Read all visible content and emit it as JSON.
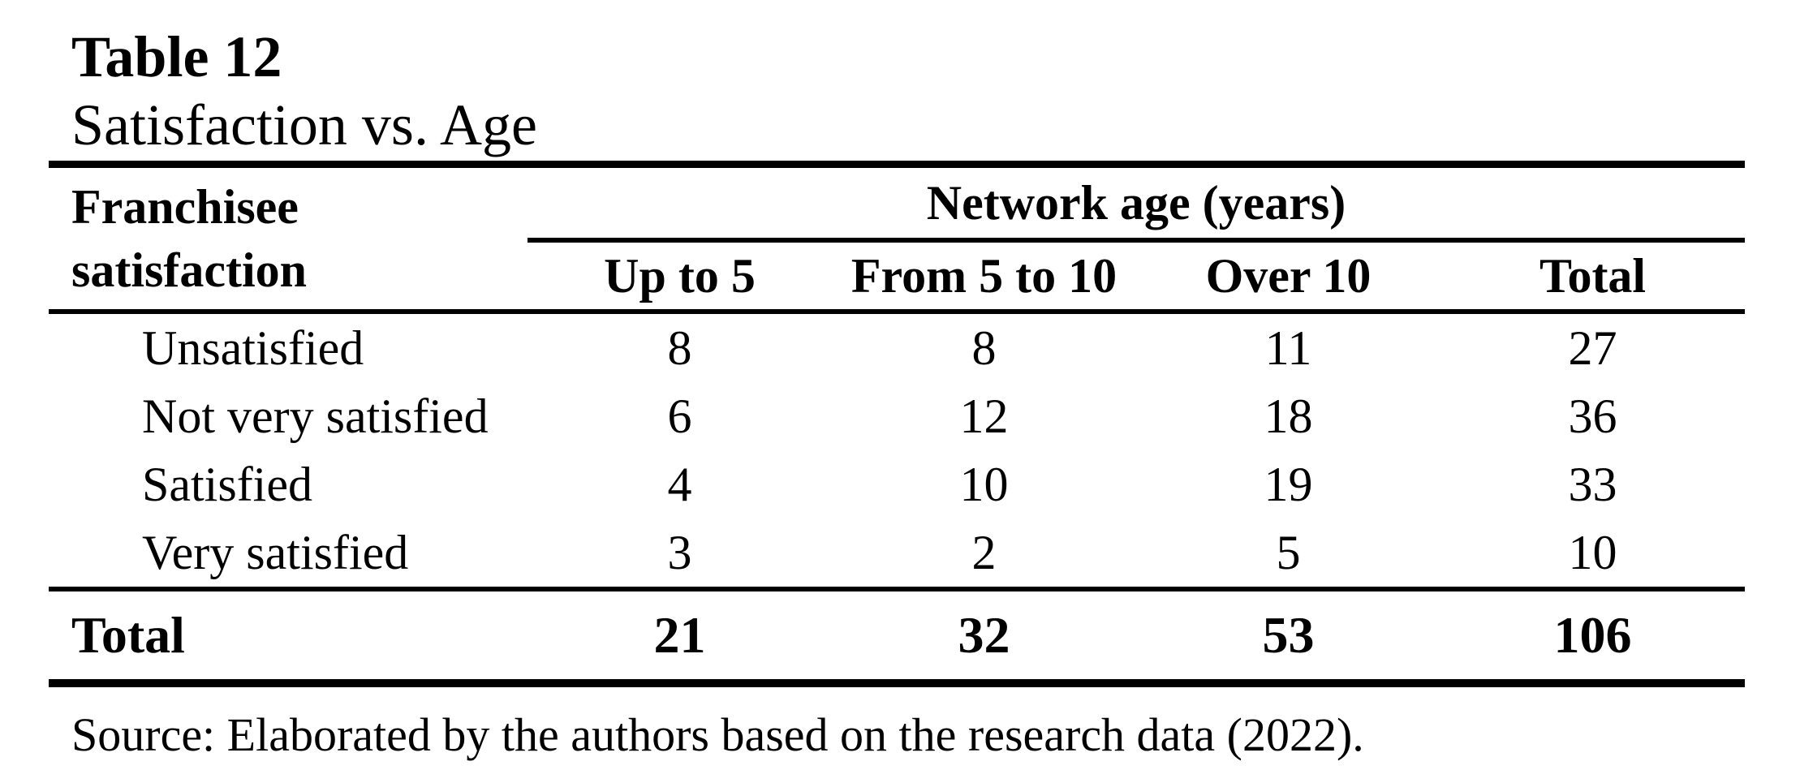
{
  "caption": {
    "label": "Table 12",
    "title": "Satisfaction vs. Age"
  },
  "table": {
    "row_header": "Franchisee satisfaction",
    "spanner": "Network age (years)",
    "columns": [
      "Up to 5",
      "From 5 to 10",
      "Over 10",
      "Total"
    ],
    "rows": [
      {
        "label": "Unsatisfied",
        "values": [
          "8",
          "8",
          "11",
          "27"
        ]
      },
      {
        "label": "Not very satisfied",
        "values": [
          "6",
          "12",
          "18",
          "36"
        ]
      },
      {
        "label": "Satisfied",
        "values": [
          "4",
          "10",
          "19",
          "33"
        ]
      },
      {
        "label": "Very satisfied",
        "values": [
          "3",
          "2",
          "5",
          "10"
        ]
      }
    ],
    "total_row": {
      "label": "Total",
      "values": [
        "21",
        "32",
        "53",
        "106"
      ]
    }
  },
  "source": "Source: Elaborated by the authors based on the research data (2022).",
  "colors": {
    "text": "#000000",
    "background": "#ffffff",
    "rule": "#000000"
  },
  "chart_data": {
    "type": "table",
    "title": "Table 12 — Satisfaction vs. Age",
    "row_header": "Franchisee satisfaction",
    "column_group": "Network age (years)",
    "columns": [
      "Up to 5",
      "From 5 to 10",
      "Over 10",
      "Total"
    ],
    "rows": [
      {
        "label": "Unsatisfied",
        "values": [
          8,
          8,
          11,
          27
        ]
      },
      {
        "label": "Not very satisfied",
        "values": [
          6,
          12,
          18,
          36
        ]
      },
      {
        "label": "Satisfied",
        "values": [
          4,
          10,
          19,
          33
        ]
      },
      {
        "label": "Very satisfied",
        "values": [
          3,
          2,
          5,
          10
        ]
      },
      {
        "label": "Total",
        "values": [
          21,
          32,
          53,
          106
        ]
      }
    ]
  }
}
